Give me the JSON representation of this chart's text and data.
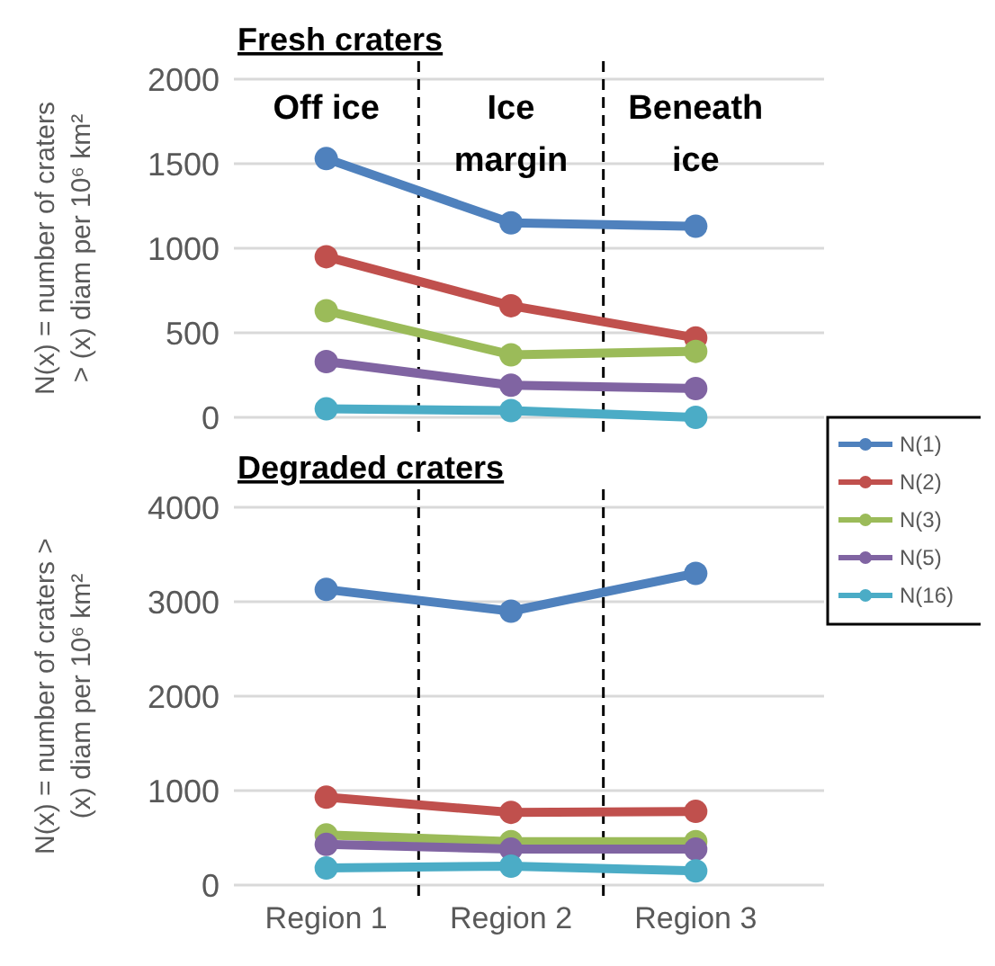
{
  "chart_data": [
    {
      "type": "line",
      "title": "Fresh craters",
      "ylabel": "N(x) = number of craters\n> (x) diam per 10⁶ km²",
      "categories": [
        null,
        null,
        null
      ],
      "ylim": [
        0,
        2000
      ],
      "yticks": [
        0,
        500,
        1000,
        1500,
        2000
      ],
      "grid": "y",
      "marker": "circle",
      "line_style": "solid",
      "tick_labels": "y",
      "legend": false,
      "annotations": [
        "Off ice",
        "Ice\nmargin",
        "Beneath\nice"
      ],
      "series": [
        {
          "color": "#4f81bd",
          "values": [
            1530,
            1150,
            1130
          ]
        },
        {
          "color": "#c0504d",
          "values": [
            950,
            660,
            470
          ]
        },
        {
          "color": "#9bbb59",
          "values": [
            630,
            370,
            390
          ]
        },
        {
          "color": "#8064a2",
          "values": [
            330,
            190,
            170
          ]
        },
        {
          "color": "#4bacc6",
          "values": [
            50,
            40,
            0
          ]
        }
      ]
    },
    {
      "type": "line",
      "title": "Degraded craters",
      "ylabel": "N(x) = number of craters >\n(x) diam per 10⁶ km²",
      "categories": [
        "Region 1",
        "Region 2",
        "Region 3"
      ],
      "ylim": [
        0,
        4000
      ],
      "yticks": [
        0,
        1000,
        2000,
        3000,
        4000
      ],
      "grid": "y",
      "marker": "circle",
      "line_style": "solid",
      "legend": "top right",
      "series": [
        {
          "name": "N(1)",
          "color": "#4f81bd",
          "values": [
            3130,
            2900,
            3300
          ]
        },
        {
          "name": "N(2)",
          "color": "#c0504d",
          "values": [
            930,
            770,
            780
          ]
        },
        {
          "name": "N(3)",
          "color": "#9bbb59",
          "values": [
            530,
            460,
            460
          ]
        },
        {
          "name": "N(5)",
          "color": "#8064a2",
          "values": [
            430,
            380,
            380
          ]
        },
        {
          "name": "N(16)",
          "color": "#4bacc6",
          "values": [
            180,
            200,
            150
          ]
        }
      ]
    }
  ]
}
